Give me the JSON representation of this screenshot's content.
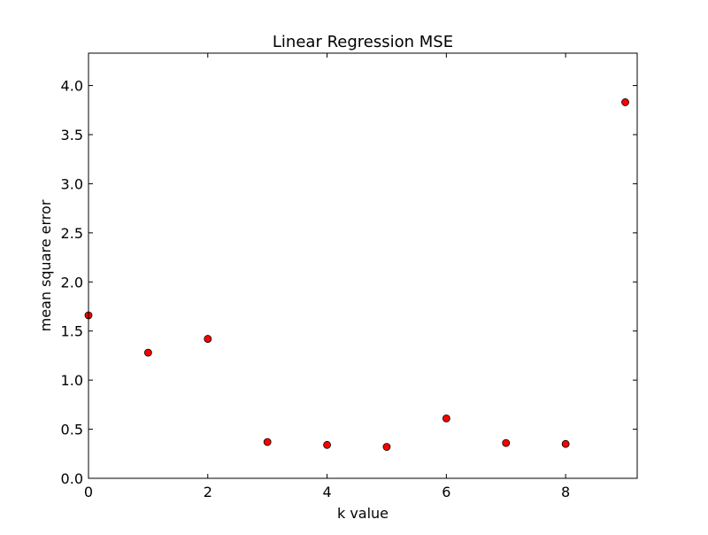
{
  "chart_data": {
    "type": "scatter",
    "title": "Linear Regression MSE",
    "xlabel": "k value",
    "ylabel": "mean square error",
    "xlim": [
      0,
      9.2
    ],
    "ylim": [
      0,
      4.33
    ],
    "xticks": [
      0,
      2,
      4,
      6,
      8
    ],
    "xtick_labels": [
      "0",
      "2",
      "4",
      "6",
      "8"
    ],
    "yticks": [
      0.0,
      0.5,
      1.0,
      1.5,
      2.0,
      2.5,
      3.0,
      3.5,
      4.0
    ],
    "ytick_labels": [
      "0.0",
      "0.5",
      "1.0",
      "1.5",
      "2.0",
      "2.5",
      "3.0",
      "3.5",
      "4.0"
    ],
    "grid": false,
    "legend": "none",
    "marker_color": "#ff0000",
    "marker_edge_color": "#000000",
    "series": [
      {
        "x": [
          0,
          1,
          2,
          3,
          4,
          5,
          6,
          7,
          8,
          9
        ],
        "y": [
          1.66,
          1.28,
          1.42,
          0.37,
          0.34,
          0.32,
          0.61,
          0.36,
          0.35,
          3.83
        ]
      }
    ]
  }
}
